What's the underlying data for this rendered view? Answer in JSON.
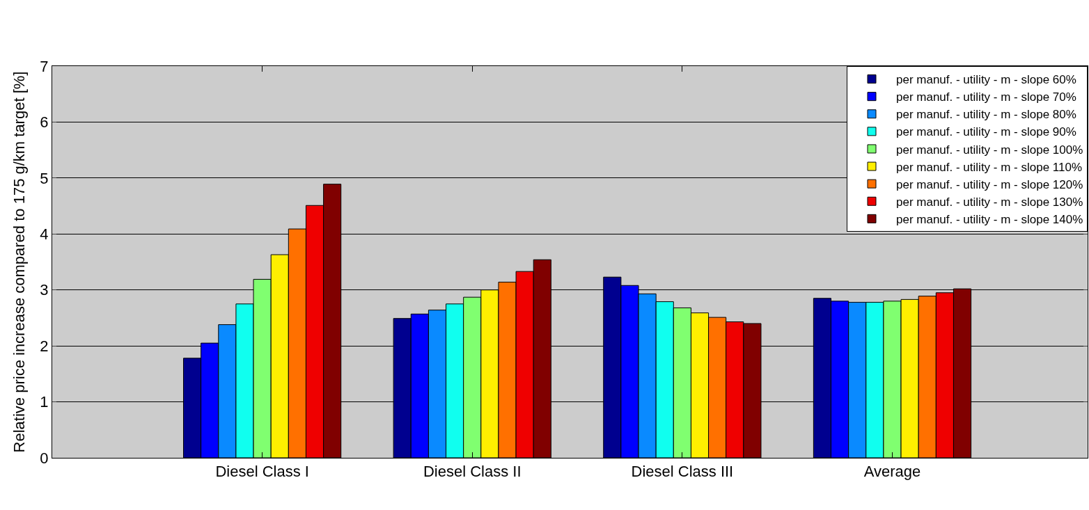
{
  "chart_data": {
    "type": "bar",
    "ylabel": "Relative price increase compared to 175 g/km target [%]",
    "categories": [
      "Diesel Class I",
      "Diesel Class II",
      "Diesel Class III",
      "Average"
    ],
    "series": [
      {
        "name": "per manuf. - utility - m - slope 60%",
        "color": "#00008f",
        "values": [
          1.78,
          2.49,
          3.23,
          2.85
        ]
      },
      {
        "name": "per manuf. - utility - m - slope 70%",
        "color": "#0000ff",
        "values": [
          2.05,
          2.57,
          3.08,
          2.8
        ]
      },
      {
        "name": "per manuf. - utility - m - slope 80%",
        "color": "#0a8aff",
        "values": [
          2.38,
          2.64,
          2.93,
          2.78
        ]
      },
      {
        "name": "per manuf. - utility - m - slope 90%",
        "color": "#10ffef",
        "values": [
          2.75,
          2.75,
          2.79,
          2.78
        ]
      },
      {
        "name": "per manuf. - utility - m - slope 100%",
        "color": "#80ff70",
        "values": [
          3.19,
          2.87,
          2.68,
          2.8
        ]
      },
      {
        "name": "per manuf. - utility - m - slope 110%",
        "color": "#ffef00",
        "values": [
          3.63,
          3.0,
          2.59,
          2.83
        ]
      },
      {
        "name": "per manuf. - utility - m - slope 120%",
        "color": "#ff7000",
        "values": [
          4.09,
          3.14,
          2.51,
          2.89
        ]
      },
      {
        "name": "per manuf. - utility - m - slope 130%",
        "color": "#ef0000",
        "values": [
          4.51,
          3.33,
          2.43,
          2.95
        ]
      },
      {
        "name": "per manuf. - utility - m - slope 140%",
        "color": "#800000",
        "values": [
          4.89,
          3.54,
          2.4,
          3.02
        ]
      }
    ],
    "ylim": [
      0,
      7
    ],
    "yticks": [
      0,
      1,
      2,
      3,
      4,
      5,
      6,
      7
    ],
    "grid": "y",
    "legend": "top right"
  }
}
